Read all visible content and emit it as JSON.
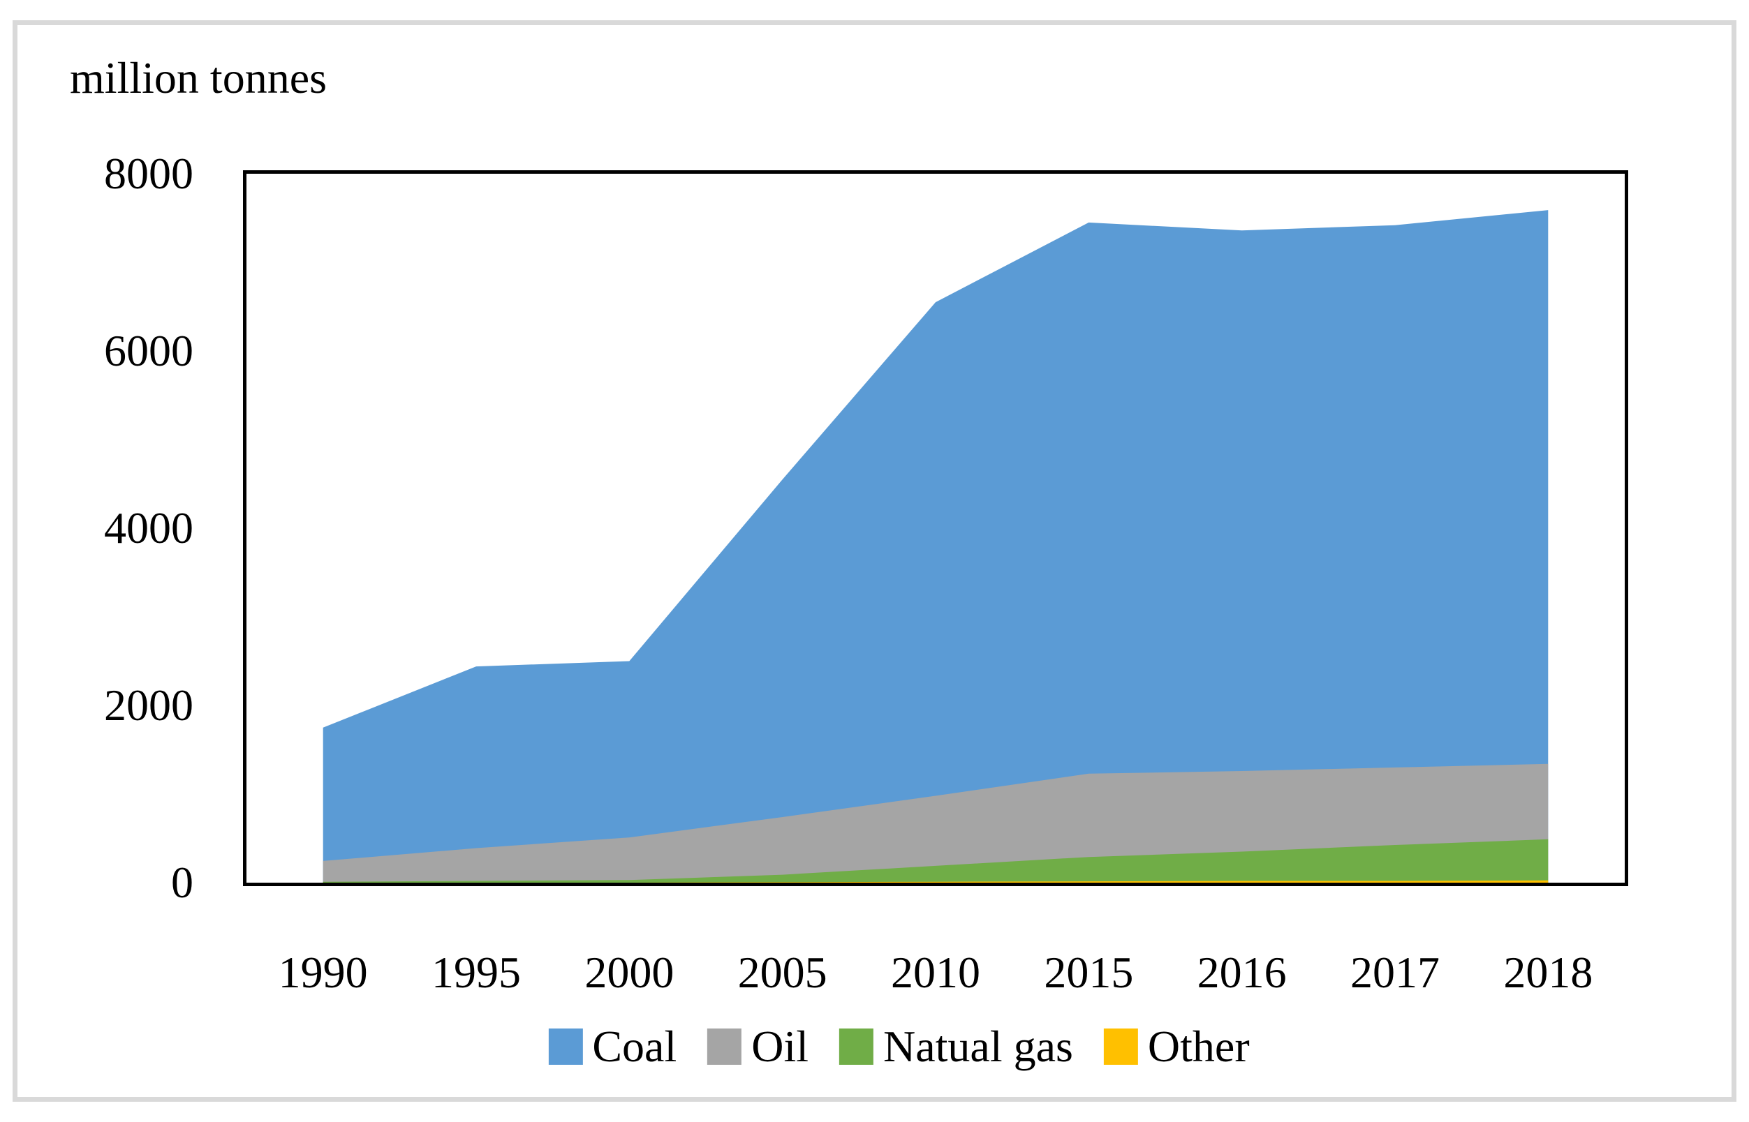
{
  "chart_data": {
    "type": "area",
    "stacked": true,
    "title": "million tonnes",
    "categories": [
      "1990",
      "1995",
      "2000",
      "2005",
      "2010",
      "2015",
      "2016",
      "2017",
      "2018"
    ],
    "series": [
      {
        "name": "Coal",
        "color": "#5B9BD5",
        "values": [
          1505,
          2050,
          1990,
          3810,
          5570,
          6220,
          6100,
          6120,
          6250
        ]
      },
      {
        "name": "Oil",
        "color": "#A5A5A5",
        "values": [
          235,
          370,
          480,
          650,
          790,
          940,
          910,
          875,
          850
        ]
      },
      {
        "name": "Natual gas",
        "color": "#70AD47",
        "values": [
          10,
          20,
          30,
          85,
          180,
          275,
          330,
          405,
          465
        ]
      },
      {
        "name": "Other",
        "color": "#FFC000",
        "values": [
          0,
          0,
          0,
          5,
          10,
          15,
          20,
          20,
          25
        ]
      }
    ],
    "stack_order_bottom_to_top": [
      "Other",
      "Natual gas",
      "Oil",
      "Coal"
    ],
    "totals": [
      1750,
      2440,
      2500,
      4550,
      6550,
      7450,
      7360,
      7420,
      7590
    ],
    "ylim": [
      0,
      8000
    ],
    "y_ticks": [
      8000,
      6000,
      4000,
      2000,
      0
    ],
    "legend_position": "bottom",
    "grid": false
  },
  "colors": {
    "background": "#FFFFFF",
    "frame": "#D9D9D9",
    "plot_border": "#000000",
    "text": "#000000"
  }
}
